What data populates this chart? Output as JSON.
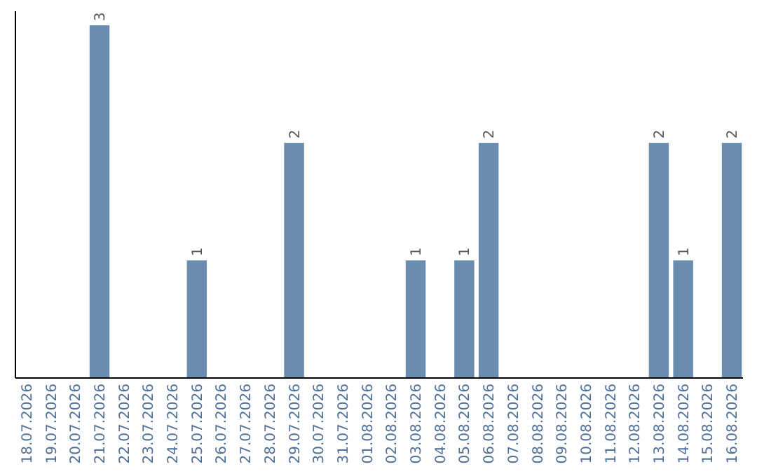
{
  "chart_data": {
    "type": "bar",
    "categories": [
      "18.07.2026",
      "19.07.2026",
      "20.07.2026",
      "21.07.2026",
      "22.07.2026",
      "23.07.2026",
      "24.07.2026",
      "25.07.2026",
      "26.07.2026",
      "27.07.2026",
      "28.07.2026",
      "29.07.2026",
      "30.07.2026",
      "31.07.2026",
      "01.08.2026",
      "02.08.2026",
      "03.08.2026",
      "04.08.2026",
      "05.08.2026",
      "06.08.2026",
      "07.08.2026",
      "08.08.2026",
      "09.08.2026",
      "10.08.2026",
      "11.08.2026",
      "12.08.2026",
      "13.08.2026",
      "14.08.2026",
      "15.08.2026",
      "16.08.2026"
    ],
    "values": [
      null,
      null,
      null,
      3,
      null,
      null,
      null,
      1,
      null,
      null,
      null,
      2,
      null,
      null,
      null,
      null,
      1,
      null,
      1,
      2,
      null,
      null,
      null,
      null,
      null,
      null,
      2,
      1,
      null,
      2
    ],
    "color": "#6a8caf",
    "ylim": [
      0,
      3.12
    ],
    "data_labels": true,
    "tick_labels": "x"
  }
}
